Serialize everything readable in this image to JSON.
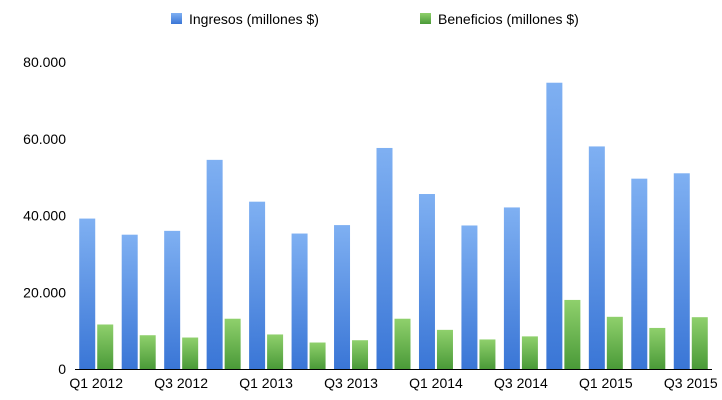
{
  "chart_data": {
    "type": "bar",
    "categories": [
      "Q1 2012",
      "Q2 2012",
      "Q3 2012",
      "Q4 2012",
      "Q1 2013",
      "Q2 2013",
      "Q3 2013",
      "Q4 2013",
      "Q1 2014",
      "Q2 2014",
      "Q3 2014",
      "Q4 2014",
      "Q1 2015",
      "Q2 2015",
      "Q3 2015"
    ],
    "x_tick_labels": [
      "Q1 2012",
      "Q3 2012",
      "Q1 2013",
      "Q3 2013",
      "Q1 2014",
      "Q3 2014",
      "Q1 2015",
      "Q3 2015"
    ],
    "series": [
      {
        "name": "Ingresos (millones $)",
        "color": "#4a86e0",
        "values": [
          39200,
          35000,
          36000,
          54500,
          43600,
          35300,
          37500,
          57600,
          45600,
          37400,
          42100,
          74600,
          58000,
          49600,
          51000
        ]
      },
      {
        "name": "Beneficios (millones $)",
        "color": "#5ea845",
        "values": [
          11600,
          8800,
          8200,
          13100,
          9000,
          6900,
          7500,
          13100,
          10200,
          7700,
          8500,
          18000,
          13600,
          10700,
          13500
        ]
      }
    ],
    "ylim": [
      0,
      80000
    ],
    "y_ticks": [
      0,
      20000,
      40000,
      60000,
      80000
    ],
    "y_tick_labels": [
      "0",
      "20.000",
      "40.000",
      "60.000",
      "80.000"
    ],
    "grid": false,
    "legend": "top-center",
    "title": "",
    "xlabel": "",
    "ylabel": ""
  }
}
